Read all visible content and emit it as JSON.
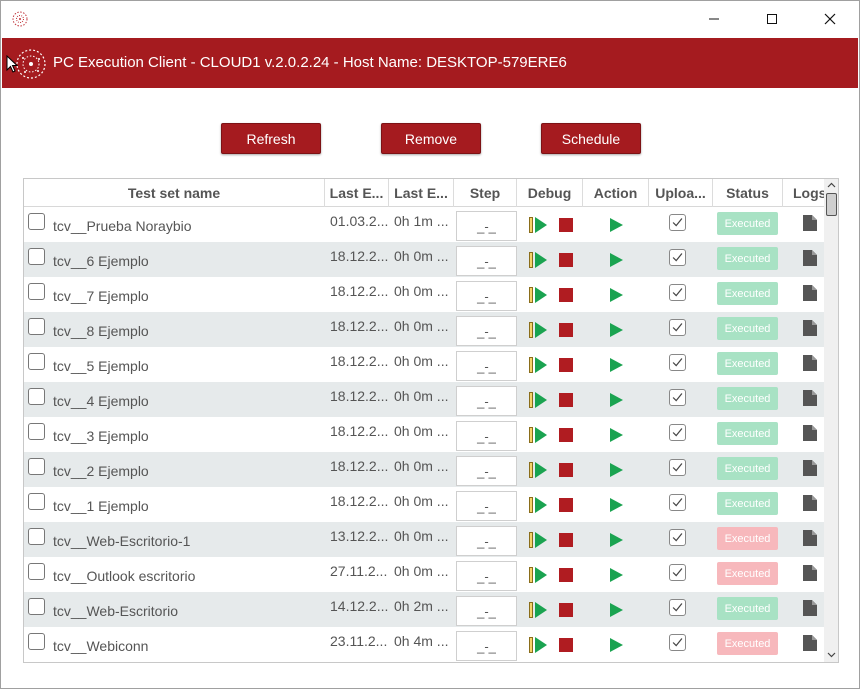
{
  "window": {
    "title": "PC Execution Client - CLOUD1 v.2.0.2.24 - Host Name: DESKTOP-579ERE6",
    "controls": {
      "minimize": "minimize-icon",
      "maximize": "maximize-icon",
      "close": "close-icon"
    }
  },
  "colors": {
    "brand": "#a51b1f",
    "status_ok": "#a8e2c4",
    "status_fail": "#f7b8bc",
    "play_green": "#1aa350",
    "stop_red": "#b01c21",
    "row_alt": "#e6eaeb"
  },
  "toolbar": {
    "refresh_label": "Refresh",
    "remove_label": "Remove",
    "schedule_label": "Schedule"
  },
  "table": {
    "columns": [
      "Test set name",
      "Last E...",
      "Last E...",
      "Step",
      "Debug",
      "Action",
      "Uploa...",
      "Status",
      "Logs"
    ],
    "rows": [
      {
        "name": "tcv__Prueba Noraybio",
        "date": "01.03.2...",
        "duration": "0h 1m ...",
        "step": "_-_",
        "status": "Executed",
        "status_kind": "ok"
      },
      {
        "name": "tcv__6 Ejemplo",
        "date": "18.12.2...",
        "duration": "0h 0m ...",
        "step": "_-_",
        "status": "Executed",
        "status_kind": "ok"
      },
      {
        "name": "tcv__7 Ejemplo",
        "date": "18.12.2...",
        "duration": "0h 0m ...",
        "step": "_-_",
        "status": "Executed",
        "status_kind": "ok"
      },
      {
        "name": "tcv__8 Ejemplo",
        "date": "18.12.2...",
        "duration": "0h 0m ...",
        "step": "_-_",
        "status": "Executed",
        "status_kind": "ok"
      },
      {
        "name": "tcv__5 Ejemplo",
        "date": "18.12.2...",
        "duration": "0h 0m ...",
        "step": "_-_",
        "status": "Executed",
        "status_kind": "ok"
      },
      {
        "name": "tcv__4 Ejemplo",
        "date": "18.12.2...",
        "duration": "0h 0m ...",
        "step": "_-_",
        "status": "Executed",
        "status_kind": "ok"
      },
      {
        "name": "tcv__3 Ejemplo",
        "date": "18.12.2...",
        "duration": "0h 0m ...",
        "step": "_-_",
        "status": "Executed",
        "status_kind": "ok"
      },
      {
        "name": "tcv__2 Ejemplo",
        "date": "18.12.2...",
        "duration": "0h 0m ...",
        "step": "_-_",
        "status": "Executed",
        "status_kind": "ok"
      },
      {
        "name": "tcv__1 Ejemplo",
        "date": "18.12.2...",
        "duration": "0h 0m ...",
        "step": "_-_",
        "status": "Executed",
        "status_kind": "ok"
      },
      {
        "name": "tcv__Web-Escritorio-1",
        "date": "13.12.2...",
        "duration": "0h 0m ...",
        "step": "_-_",
        "status": "Executed",
        "status_kind": "fail"
      },
      {
        "name": "tcv__Outlook escritorio",
        "date": "27.11.2...",
        "duration": "0h 0m ...",
        "step": "_-_",
        "status": "Executed",
        "status_kind": "fail"
      },
      {
        "name": "tcv__Web-Escritorio",
        "date": "14.12.2...",
        "duration": "0h 2m ...",
        "step": "_-_",
        "status": "Executed",
        "status_kind": "ok"
      },
      {
        "name": "tcv__Webiconn",
        "date": "23.11.2...",
        "duration": "0h 4m ...",
        "step": "_-_",
        "status": "Executed",
        "status_kind": "fail"
      }
    ]
  }
}
